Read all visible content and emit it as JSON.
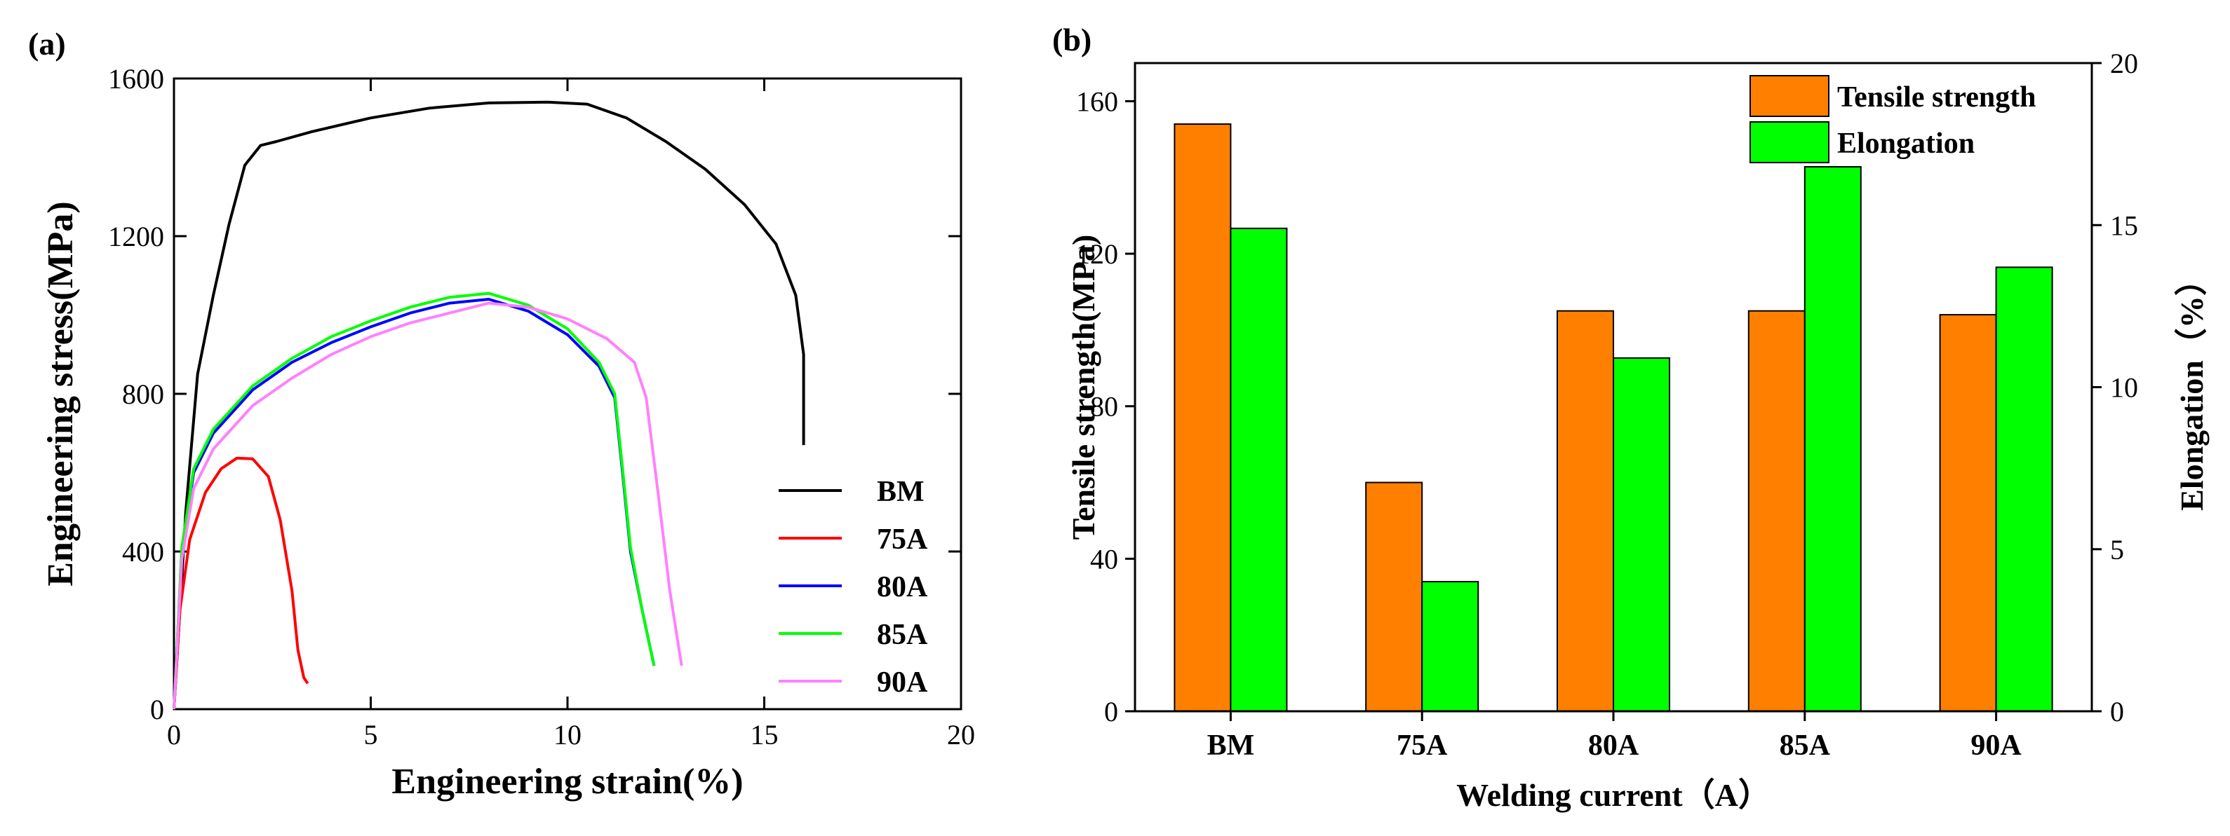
{
  "chart_data": [
    {
      "panel_label": "(a)",
      "type": "line",
      "xlabel": "Engineering strain(%)",
      "ylabel": "Engineering stress(MPa)",
      "xlim": [
        0,
        20
      ],
      "ylim": [
        0,
        1600
      ],
      "xticks": [
        0,
        5,
        10,
        15,
        20
      ],
      "xtick_labels": [
        "0",
        "5",
        "10",
        "15",
        "20"
      ],
      "yticks": [
        0,
        400,
        800,
        1200,
        1600
      ],
      "ytick_labels": [
        "0",
        "400",
        "800",
        "1200",
        "1600"
      ],
      "legend_position": "bottom-right",
      "series": [
        {
          "name": "BM",
          "color": "#000000",
          "x": [
            0,
            0.3,
            0.6,
            1.0,
            1.4,
            1.8,
            2.2,
            2.6,
            3.5,
            5,
            6.5,
            8,
            9.5,
            10.5,
            11.5,
            12.5,
            13.5,
            14.5,
            15.3,
            15.8,
            16.0,
            16.0
          ],
          "y": [
            0,
            500,
            850,
            1050,
            1230,
            1380,
            1430,
            1440,
            1465,
            1500,
            1525,
            1538,
            1540,
            1535,
            1500,
            1440,
            1370,
            1280,
            1180,
            1050,
            900,
            670
          ]
        },
        {
          "name": "75A",
          "color": "#ff0000",
          "x": [
            0,
            0.15,
            0.4,
            0.8,
            1.2,
            1.6,
            2.0,
            2.4,
            2.7,
            3.0,
            3.15,
            3.3,
            3.4
          ],
          "y": [
            0,
            250,
            430,
            550,
            610,
            637,
            635,
            590,
            480,
            300,
            150,
            80,
            65
          ]
        },
        {
          "name": "80A",
          "color": "#0000ff",
          "x": [
            0,
            0.2,
            0.5,
            1,
            2,
            3,
            4,
            5,
            6,
            7,
            8,
            9,
            10,
            10.8,
            11.2,
            11.4,
            11.6,
            11.9,
            12.2
          ],
          "y": [
            0,
            400,
            600,
            700,
            810,
            880,
            930,
            970,
            1005,
            1030,
            1040,
            1010,
            950,
            870,
            790,
            600,
            400,
            250,
            110
          ]
        },
        {
          "name": "85A",
          "color": "#00ff00",
          "x": [
            0,
            0.2,
            0.5,
            1,
            2,
            3,
            4,
            5,
            6,
            7,
            8,
            9,
            10,
            10.8,
            11.2,
            11.4,
            11.6,
            11.9,
            12.2
          ],
          "y": [
            0,
            410,
            610,
            710,
            820,
            890,
            945,
            985,
            1020,
            1045,
            1055,
            1025,
            965,
            880,
            800,
            610,
            410,
            250,
            110
          ]
        },
        {
          "name": "90A",
          "color": "#ff80ff",
          "x": [
            0,
            0.2,
            0.5,
            1,
            2,
            3,
            4,
            5,
            6,
            7,
            8,
            9,
            10,
            11,
            11.7,
            12.0,
            12.3,
            12.6,
            12.9
          ],
          "y": [
            0,
            380,
            560,
            660,
            770,
            840,
            900,
            945,
            980,
            1005,
            1030,
            1020,
            990,
            940,
            880,
            790,
            550,
            300,
            110
          ]
        }
      ]
    },
    {
      "panel_label": "(b)",
      "type": "bar",
      "xlabel": "Welding current（A）",
      "ylabel": "Tensile strength(MPa)",
      "y2label": "Elongation（%）",
      "categories": [
        "BM",
        "75A",
        "80A",
        "85A",
        "90A"
      ],
      "ylim": [
        0,
        170
      ],
      "y2lim": [
        0,
        20
      ],
      "yticks": [
        0,
        40,
        80,
        120,
        160
      ],
      "ytick_labels": [
        "0",
        "40",
        "80",
        "120",
        "160"
      ],
      "y2ticks": [
        0,
        5,
        10,
        15,
        20
      ],
      "y2tick_labels": [
        "0",
        "5",
        "10",
        "15",
        "20"
      ],
      "legend_position": "top-right",
      "series": [
        {
          "name": "Tensile strength",
          "axis": "left",
          "color": "#ff8000",
          "values": [
            154,
            60,
            105,
            105,
            104
          ]
        },
        {
          "name": "Elongation",
          "axis": "right",
          "color": "#00ff00",
          "values": [
            14.9,
            4.0,
            10.9,
            16.8,
            13.7
          ]
        }
      ]
    }
  ]
}
